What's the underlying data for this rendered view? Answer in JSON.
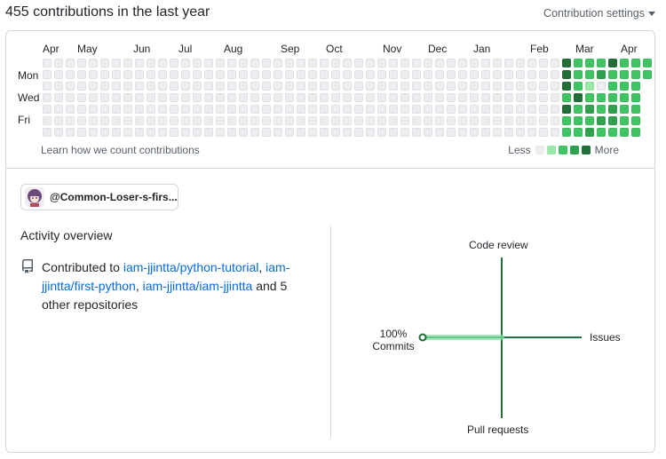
{
  "header": {
    "title": "455 contributions in the last year",
    "settings_label": "Contribution settings"
  },
  "graph": {
    "months": [
      "Apr",
      "May",
      "Jun",
      "Jul",
      "Aug",
      "Sep",
      "Oct",
      "Nov",
      "Dec",
      "Jan",
      "Feb",
      "Mar",
      "Apr"
    ],
    "days": [
      "Mon",
      "Wed",
      "Fri"
    ],
    "learn_label": "Learn how we count contributions",
    "legend_less": "Less",
    "legend_more": "More",
    "levels": [
      "#ebedf0",
      "#9be9a8",
      "#40c463",
      "#30a14e",
      "#216e39"
    ],
    "recent_weeks": [
      [
        4,
        4,
        4,
        2,
        4,
        2,
        2
      ],
      [
        2,
        2,
        2,
        4,
        2,
        2,
        2
      ],
      [
        2,
        2,
        1,
        2,
        3,
        2,
        3
      ],
      [
        2,
        3,
        0,
        2,
        2,
        3,
        2
      ],
      [
        4,
        2,
        2,
        2,
        3,
        3,
        2
      ],
      [
        2,
        2,
        2,
        2,
        2,
        2,
        2
      ],
      [
        2,
        2,
        2,
        2,
        2,
        2,
        2
      ],
      [
        2,
        2,
        null,
        null,
        null,
        null,
        null
      ]
    ]
  },
  "org": {
    "name": "@Common-Loser-s-firs..."
  },
  "activity": {
    "title": "Activity overview",
    "prefix": "Contributed to",
    "repo1": "iam-jjintta/python-tutorial",
    "repo2": "iam-jjintta/first-python",
    "repo3": "iam-jjintta/iam-jjintta",
    "suffix": "and 5 other repositories"
  },
  "radar": {
    "code_review": "Code review",
    "issues": "Issues",
    "pull_requests": "Pull requests",
    "commits_pct": "100%",
    "commits": "Commits",
    "commits_value": 100,
    "issues_value": 0,
    "code_review_value": 0,
    "pull_requests_value": 0,
    "color": "#216e39"
  }
}
